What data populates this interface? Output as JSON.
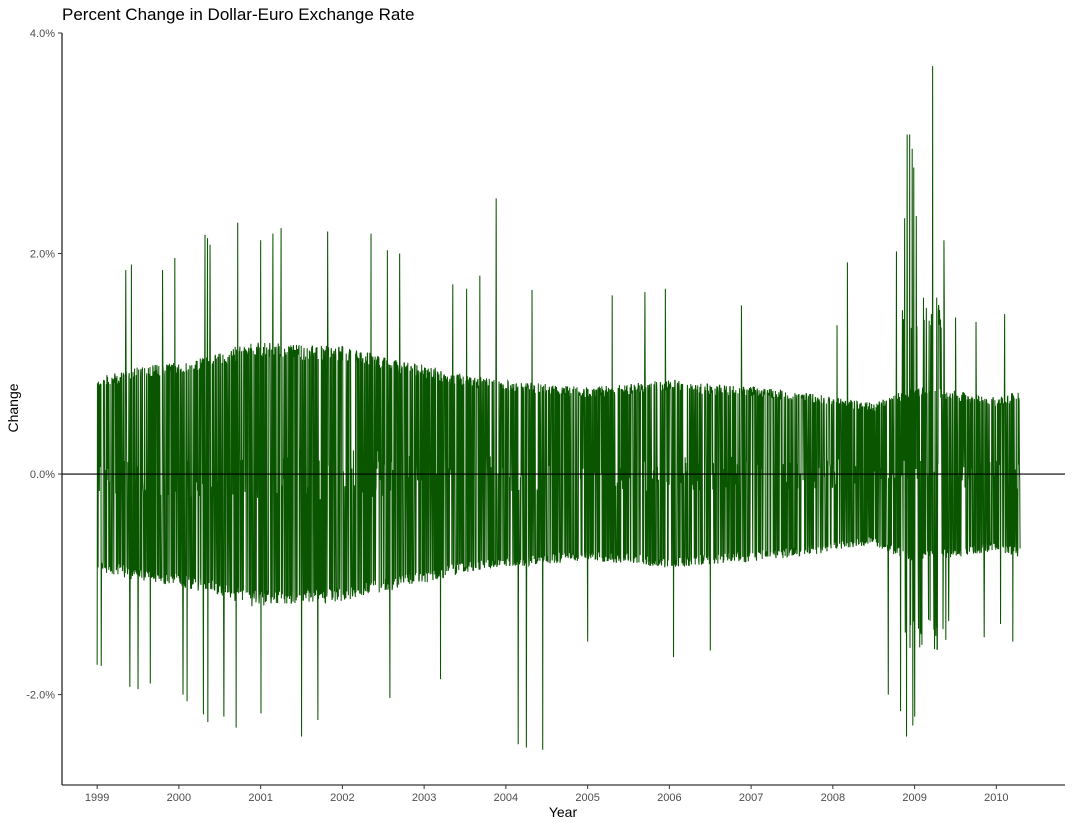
{
  "chart_data": {
    "type": "line",
    "title": "Percent Change in Dollar-Euro Exchange Rate",
    "xlabel": "Year",
    "ylabel": "Change",
    "xlim": [
      1998.57,
      2010.84
    ],
    "ylim": [
      -2.82,
      4.0
    ],
    "x_ticks": [
      {
        "value": 1999,
        "label": "1999"
      },
      {
        "value": 2000,
        "label": "2000"
      },
      {
        "value": 2001,
        "label": "2001"
      },
      {
        "value": 2002,
        "label": "2002"
      },
      {
        "value": 2003,
        "label": "2003"
      },
      {
        "value": 2004,
        "label": "2004"
      },
      {
        "value": 2005,
        "label": "2005"
      },
      {
        "value": 2006,
        "label": "2006"
      },
      {
        "value": 2007,
        "label": "2007"
      },
      {
        "value": 2008,
        "label": "2008"
      },
      {
        "value": 2009,
        "label": "2009"
      },
      {
        "value": 2010,
        "label": "2010"
      }
    ],
    "y_ticks": [
      {
        "value": -2.0,
        "label": "-2.0%"
      },
      {
        "value": 0.0,
        "label": "0.0%"
      },
      {
        "value": 2.0,
        "label": "2.0%"
      },
      {
        "value": 4.0,
        "label": "4.0%"
      }
    ],
    "reference_line": {
      "y": 0.0
    },
    "series_color": "#0a5600",
    "grid": false,
    "legend": "none",
    "series": [
      {
        "x_start": 1999.0,
        "x_end": 2010.29,
        "points_per_year": 260,
        "envelope": [
          {
            "x": 1999.0,
            "value": 0.86
          },
          {
            "x": 1999.5,
            "value": 0.95
          },
          {
            "x": 2000.0,
            "value": 1.0
          },
          {
            "x": 2000.5,
            "value": 1.08
          },
          {
            "x": 2000.85,
            "value": 1.18
          },
          {
            "x": 2001.5,
            "value": 1.15
          },
          {
            "x": 2002.0,
            "value": 1.14
          },
          {
            "x": 2002.5,
            "value": 1.05
          },
          {
            "x": 2003.0,
            "value": 0.97
          },
          {
            "x": 2003.5,
            "value": 0.88
          },
          {
            "x": 2004.0,
            "value": 0.83
          },
          {
            "x": 2004.5,
            "value": 0.8
          },
          {
            "x": 2005.0,
            "value": 0.77
          },
          {
            "x": 2005.5,
            "value": 0.8
          },
          {
            "x": 2006.0,
            "value": 0.84
          },
          {
            "x": 2006.5,
            "value": 0.8
          },
          {
            "x": 2007.0,
            "value": 0.78
          },
          {
            "x": 2007.5,
            "value": 0.74
          },
          {
            "x": 2008.0,
            "value": 0.69
          },
          {
            "x": 2008.5,
            "value": 0.63
          },
          {
            "x": 2008.75,
            "value": 0.72
          },
          {
            "x": 2009.0,
            "value": 0.78
          },
          {
            "x": 2009.5,
            "value": 0.74
          },
          {
            "x": 2010.0,
            "value": 0.68
          },
          {
            "x": 2010.29,
            "value": 0.74
          }
        ],
        "spikes": [
          {
            "x": 1999.0,
            "value": -1.73
          },
          {
            "x": 1999.05,
            "value": -1.74
          },
          {
            "x": 1999.35,
            "value": 1.85
          },
          {
            "x": 1999.4,
            "value": -1.93
          },
          {
            "x": 1999.42,
            "value": 1.9
          },
          {
            "x": 1999.5,
            "value": -1.95
          },
          {
            "x": 1999.65,
            "value": -1.9
          },
          {
            "x": 1999.8,
            "value": 1.85
          },
          {
            "x": 1999.95,
            "value": 1.96
          },
          {
            "x": 2000.05,
            "value": -2.0
          },
          {
            "x": 2000.1,
            "value": -2.06
          },
          {
            "x": 2000.3,
            "value": -2.18
          },
          {
            "x": 2000.32,
            "value": 2.17
          },
          {
            "x": 2000.35,
            "value": 2.14
          },
          {
            "x": 2000.38,
            "value": 2.08
          },
          {
            "x": 2000.35,
            "value": -2.25
          },
          {
            "x": 2000.55,
            "value": -2.2
          },
          {
            "x": 2000.72,
            "value": 2.28
          },
          {
            "x": 2000.7,
            "value": -2.3
          },
          {
            "x": 2001.0,
            "value": 2.12
          },
          {
            "x": 2001.0,
            "value": -2.17
          },
          {
            "x": 2001.15,
            "value": 2.18
          },
          {
            "x": 2001.25,
            "value": 2.23
          },
          {
            "x": 2001.5,
            "value": -2.38
          },
          {
            "x": 2001.7,
            "value": -2.23
          },
          {
            "x": 2001.82,
            "value": 2.2
          },
          {
            "x": 2002.35,
            "value": 2.18
          },
          {
            "x": 2002.55,
            "value": 2.03
          },
          {
            "x": 2002.58,
            "value": -2.03
          },
          {
            "x": 2002.7,
            "value": 2.0
          },
          {
            "x": 2003.2,
            "value": -1.86
          },
          {
            "x": 2003.35,
            "value": 1.72
          },
          {
            "x": 2003.52,
            "value": 1.68
          },
          {
            "x": 2003.68,
            "value": 1.8
          },
          {
            "x": 2003.88,
            "value": 2.5
          },
          {
            "x": 2004.15,
            "value": -2.45
          },
          {
            "x": 2004.25,
            "value": -2.48
          },
          {
            "x": 2004.45,
            "value": -2.5
          },
          {
            "x": 2004.32,
            "value": 1.67
          },
          {
            "x": 2005.0,
            "value": -1.52
          },
          {
            "x": 2005.3,
            "value": 1.62
          },
          {
            "x": 2005.7,
            "value": 1.65
          },
          {
            "x": 2005.95,
            "value": 1.68
          },
          {
            "x": 2006.05,
            "value": -1.66
          },
          {
            "x": 2006.5,
            "value": -1.6
          },
          {
            "x": 2006.88,
            "value": 1.53
          },
          {
            "x": 2008.05,
            "value": 1.35
          },
          {
            "x": 2008.18,
            "value": 1.92
          },
          {
            "x": 2008.68,
            "value": -2.0
          },
          {
            "x": 2008.78,
            "value": 2.02
          },
          {
            "x": 2008.83,
            "value": -2.15
          },
          {
            "x": 2008.88,
            "value": 2.32
          },
          {
            "x": 2008.91,
            "value": 3.08
          },
          {
            "x": 2008.94,
            "value": 3.08
          },
          {
            "x": 2008.97,
            "value": 2.95
          },
          {
            "x": 2008.99,
            "value": 2.78
          },
          {
            "x": 2008.9,
            "value": -2.38
          },
          {
            "x": 2008.98,
            "value": -2.28
          },
          {
            "x": 2009.0,
            "value": -2.2
          },
          {
            "x": 2009.02,
            "value": 2.34
          },
          {
            "x": 2009.22,
            "value": 3.7
          },
          {
            "x": 2009.27,
            "value": 1.6
          },
          {
            "x": 2009.36,
            "value": 2.12
          },
          {
            "x": 2009.28,
            "value": -1.58
          },
          {
            "x": 2009.5,
            "value": 1.42
          },
          {
            "x": 2009.75,
            "value": 1.38
          },
          {
            "x": 2009.85,
            "value": -1.48
          },
          {
            "x": 2010.1,
            "value": 1.45
          },
          {
            "x": 2010.2,
            "value": -1.52
          },
          {
            "x": 2010.05,
            "value": -1.36
          }
        ]
      }
    ]
  }
}
